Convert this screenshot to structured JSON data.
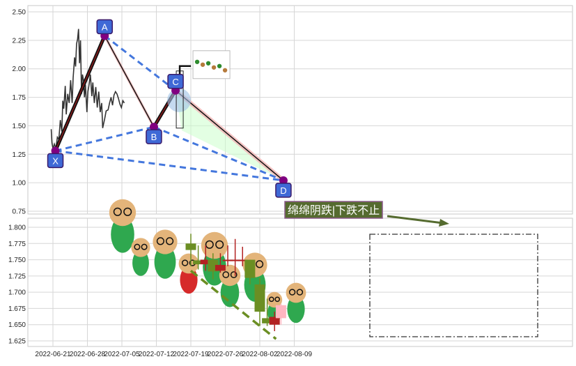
{
  "chart_data": [
    {
      "type": "line",
      "panel": "top",
      "x_dates": [
        "2022-06-21",
        "2022-06-28",
        "2022-07-05",
        "2022-07-12",
        "2022-07-19",
        "2022-07-26",
        "2022-08-02",
        "2022-08-09"
      ],
      "ylim": [
        0.72,
        2.55
      ],
      "yticks": [
        "0.75",
        "1.00",
        "1.25",
        "1.50",
        "1.75",
        "2.00",
        "2.25",
        "2.50"
      ],
      "grid": true,
      "price_series": [
        [
          -0.35,
          1.47
        ],
        [
          -0.2,
          1.35
        ],
        [
          0,
          1.3
        ],
        [
          0.3,
          1.34
        ],
        [
          0.6,
          1.3
        ],
        [
          0.9,
          1.4
        ],
        [
          1.2,
          1.38
        ],
        [
          1.5,
          1.55
        ],
        [
          1.8,
          1.45
        ],
        [
          2.0,
          1.72
        ],
        [
          2.2,
          1.65
        ],
        [
          2.5,
          1.85
        ],
        [
          2.7,
          1.6
        ],
        [
          3.0,
          1.78
        ],
        [
          3.3,
          1.7
        ],
        [
          3.6,
          1.9
        ],
        [
          3.9,
          1.7
        ],
        [
          4.1,
          1.92
        ],
        [
          4.4,
          2.1
        ],
        [
          4.6,
          2.02
        ],
        [
          4.8,
          2.22
        ],
        [
          5.0,
          2.26
        ],
        [
          5.2,
          2.35
        ],
        [
          5.4,
          2.05
        ],
        [
          5.6,
          2.25
        ],
        [
          5.8,
          1.78
        ],
        [
          6.0,
          1.95
        ],
        [
          6.2,
          1.9
        ],
        [
          6.4,
          1.75
        ],
        [
          6.6,
          1.86
        ],
        [
          6.9,
          1.62
        ],
        [
          7.1,
          1.8
        ],
        [
          7.3,
          1.85
        ],
        [
          7.6,
          1.95
        ],
        [
          7.9,
          1.76
        ],
        [
          8.1,
          1.88
        ],
        [
          8.4,
          1.7
        ],
        [
          8.7,
          1.84
        ],
        [
          9.0,
          1.66
        ],
        [
          9.3,
          1.8
        ],
        [
          9.6,
          1.62
        ],
        [
          9.9,
          1.7
        ],
        [
          10.1,
          1.48
        ],
        [
          10.5,
          1.56
        ],
        [
          10.8,
          1.63
        ],
        [
          11.2,
          1.64
        ],
        [
          11.5,
          1.7
        ],
        [
          11.8,
          1.75
        ],
        [
          12.1,
          1.68
        ],
        [
          12.4,
          1.77
        ],
        [
          12.7,
          1.8
        ],
        [
          13.0,
          1.78
        ],
        [
          13.3,
          1.74
        ],
        [
          13.6,
          1.69
        ],
        [
          13.9,
          1.66
        ],
        [
          14.2,
          1.72
        ],
        [
          14.5,
          1.7
        ]
      ],
      "xabcd_points": [
        {
          "label": "X",
          "day": 0.5,
          "value": 1.28
        },
        {
          "label": "A",
          "day": 10.5,
          "value": 2.29
        },
        {
          "label": "B",
          "day": 20.5,
          "value": 1.49
        },
        {
          "label": "C",
          "day": 24.9,
          "value": 1.81
        },
        {
          "label": "D",
          "day": 46.8,
          "value": 1.02
        }
      ],
      "projection_lines": [
        [
          "X",
          "A"
        ],
        [
          "A",
          "C"
        ],
        [
          "X",
          "B"
        ],
        [
          "B",
          "D"
        ],
        [
          "X",
          "D"
        ]
      ],
      "colors": {
        "price": "#333333",
        "leg": "#111111",
        "leg_up": "#8b1a1a",
        "leg_down": "#f2b8b8",
        "dashed": "#4477dd",
        "marker": "#800080",
        "label_box": "#3f69d6",
        "fill_green": "#ccffcc"
      }
    },
    {
      "type": "candlestick",
      "panel": "bottom",
      "ylim": [
        1.62,
        1.81
      ],
      "yticks": [
        "1.625",
        "1.650",
        "1.675",
        "1.700",
        "1.725",
        "1.750",
        "1.775",
        "1.800"
      ],
      "annotation": "绵绵阴跌|下跌不止",
      "candles": [
        {
          "day": 28.0,
          "open": 1.765,
          "close": 1.775,
          "high": 1.79,
          "low": 1.74,
          "color": "green"
        },
        {
          "day": 29.5,
          "open": 1.749,
          "close": 1.743,
          "high": 1.772,
          "low": 1.735,
          "color": "green"
        },
        {
          "day": 31.0,
          "open": 1.743,
          "close": 1.75,
          "high": 1.772,
          "low": 1.733,
          "color": "red"
        },
        {
          "day": 32.5,
          "open": 1.75,
          "close": 1.732,
          "high": 1.76,
          "low": 1.72,
          "color": "green"
        },
        {
          "day": 34.0,
          "open": 1.733,
          "close": 1.742,
          "high": 1.76,
          "low": 1.73,
          "color": "red"
        },
        {
          "day": 35.5,
          "open": 1.75,
          "close": 1.75,
          "high": 1.772,
          "low": 1.74,
          "color": "red"
        },
        {
          "day": 37.0,
          "open": 1.75,
          "close": 1.75,
          "high": 1.782,
          "low": 1.725,
          "color": "red"
        },
        {
          "day": 38.5,
          "open": 1.75,
          "close": 1.75,
          "high": 1.77,
          "low": 1.74,
          "color": "red"
        },
        {
          "day": 40.0,
          "open": 1.75,
          "close": 1.722,
          "high": 1.75,
          "low": 1.712,
          "color": "green"
        },
        {
          "day": 42.0,
          "open": 1.712,
          "close": 1.67,
          "high": 1.722,
          "low": 1.648,
          "color": "green"
        },
        {
          "day": 43.5,
          "open": 1.66,
          "close": 1.652,
          "high": 1.69,
          "low": 1.648,
          "color": "green"
        },
        {
          "day": 45.0,
          "open": 1.65,
          "close": 1.662,
          "high": 1.67,
          "low": 1.64,
          "color": "red"
        },
        {
          "day": 46.3,
          "open": 1.66,
          "close": 1.68,
          "high": 1.682,
          "low": 1.65,
          "color": "pink"
        }
      ],
      "trend_line": [
        [
          28.0,
          1.733
        ],
        [
          45.3,
          1.628
        ]
      ],
      "colors": {
        "up": "#b22222",
        "down": "#6b8e23",
        "pink": "#ffb6c1",
        "annotation_bg": "#556b2f",
        "annotation_border": "#8b5a8b",
        "annotation_text": "#ffffff",
        "box_border": "#333333"
      }
    }
  ]
}
